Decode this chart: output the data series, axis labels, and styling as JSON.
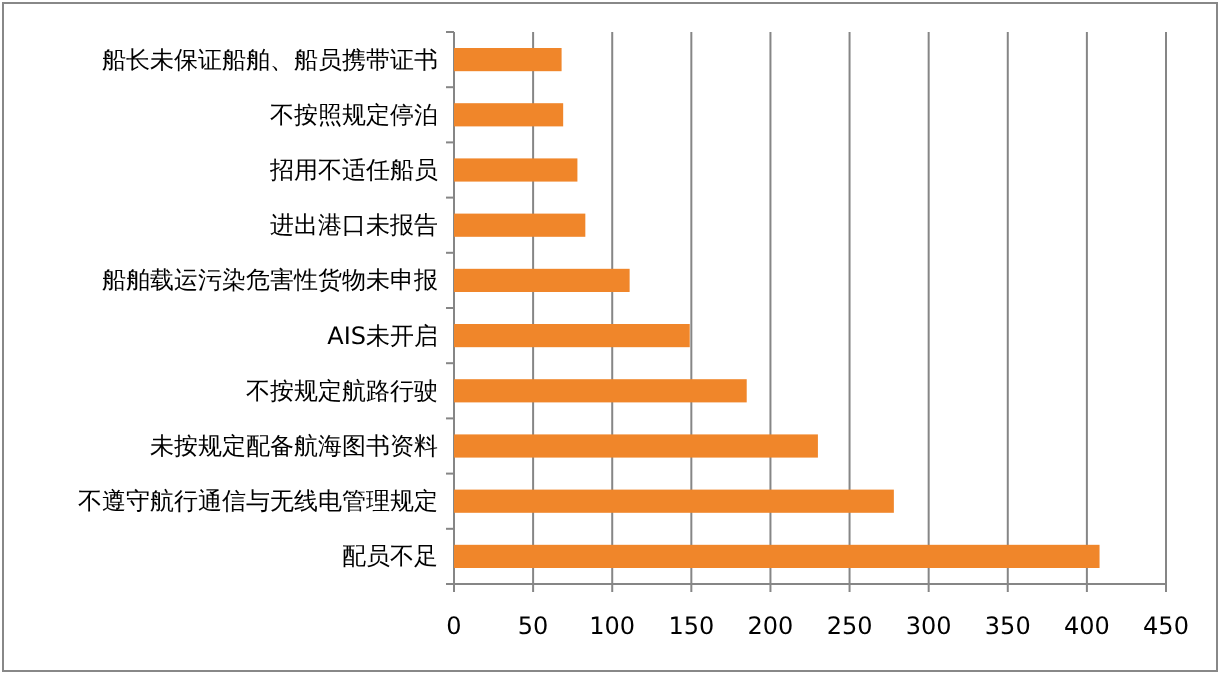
{
  "chart_data": {
    "type": "bar",
    "orientation": "horizontal",
    "categories": [
      "船长未保证船舶、船员携带证书",
      "不按照规定停泊",
      "招用不适任船员",
      "进出港口未报告",
      "船舶载运污染危害性货物未申报",
      "AIS未开启",
      "不按规定航路行驶",
      "未按规定配备航海图书资料",
      "不遵守航行通信与无线电管理规定",
      "配员不足"
    ],
    "values": [
      68,
      69,
      78,
      83,
      111,
      149,
      185,
      230,
      278,
      408
    ],
    "color": "#f0862a",
    "xlim": [
      0,
      450
    ],
    "xticks": [
      0,
      50,
      100,
      150,
      200,
      250,
      300,
      350,
      400,
      450
    ],
    "grid": "x"
  }
}
